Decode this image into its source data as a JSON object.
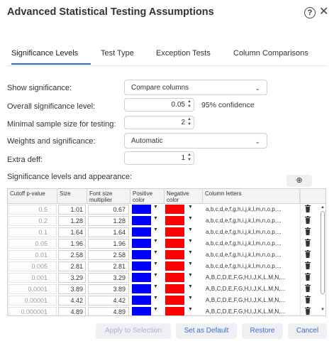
{
  "dialog": {
    "title": "Advanced Statistical Testing Assumptions"
  },
  "tabs": [
    {
      "label": "Significance Levels",
      "active": true
    },
    {
      "label": "Test Type",
      "active": false
    },
    {
      "label": "Exception Tests",
      "active": false
    },
    {
      "label": "Column Comparisons",
      "active": false
    }
  ],
  "form": {
    "show_significance": {
      "label": "Show significance:",
      "value": "Compare columns"
    },
    "overall_level": {
      "label": "Overall significance level:",
      "value": "0.05",
      "suffix": "95% confidence"
    },
    "min_sample": {
      "label": "Minimal sample size for testing:",
      "value": "2"
    },
    "weights": {
      "label": "Weights and significance:",
      "value": "Automatic"
    },
    "extra_deff": {
      "label": "Extra deff:",
      "value": "1"
    }
  },
  "table": {
    "section_label": "Significance levels and appearance:",
    "add_icon": "plus-circle-icon",
    "headers": {
      "p": "Cutoff p-value",
      "size": "Size",
      "font": "Font size multiplier",
      "pos": "Positive color",
      "neg": "Negative color",
      "letters": "Column letters"
    },
    "positive_color": "#0000ff",
    "negative_color": "#ff0000",
    "rows": [
      {
        "p": "0.5",
        "size": "1.01",
        "font": "0.67",
        "letters": "a,b,c,d,e,f,g,h,i,j,k,l,m,n,o,p,..."
      },
      {
        "p": "0.2",
        "size": "1.28",
        "font": "1.28",
        "letters": "a,b,c,d,e,f,g,h,i,j,k,l,m,n,o,p,..."
      },
      {
        "p": "0.1",
        "size": "1.64",
        "font": "1.64",
        "letters": "a,b,c,d,e,f,g,h,i,j,k,l,m,n,o,p,..."
      },
      {
        "p": "0.05",
        "size": "1.96",
        "font": "1.96",
        "letters": "a,b,c,d,e,f,g,h,i,j,k,l,m,n,o,p,..."
      },
      {
        "p": "0.01",
        "size": "2.58",
        "font": "2.58",
        "letters": "a,b,c,d,e,f,g,h,i,j,k,l,m,n,o,p,..."
      },
      {
        "p": "0.005",
        "size": "2.81",
        "font": "2.81",
        "letters": "a,b,c,d,e,f,g,h,i,j,k,l,m,n,o,p,..."
      },
      {
        "p": "0.001",
        "size": "3.29",
        "font": "3.29",
        "letters": "A,B,C,D,E,F,G,H,I,J,K,L,M,N,..."
      },
      {
        "p": "0.0001",
        "size": "3.89",
        "font": "3.89",
        "letters": "A,B,C,D,E,F,G,H,I,J,K,L,M,N,..."
      },
      {
        "p": "0.00001",
        "size": "4.42",
        "font": "4.42",
        "letters": "A,B,C,D,E,F,G,H,I,J,K,L,M,N,..."
      },
      {
        "p": "0.000001",
        "size": "4.89",
        "font": "4.89",
        "letters": "A,B,C,D,E,F,G,H,I,J,K,L,M,N,..."
      }
    ]
  },
  "footer": {
    "apply": "Apply to Selection",
    "default": "Set as Default",
    "restore": "Restore",
    "cancel": "Cancel"
  }
}
